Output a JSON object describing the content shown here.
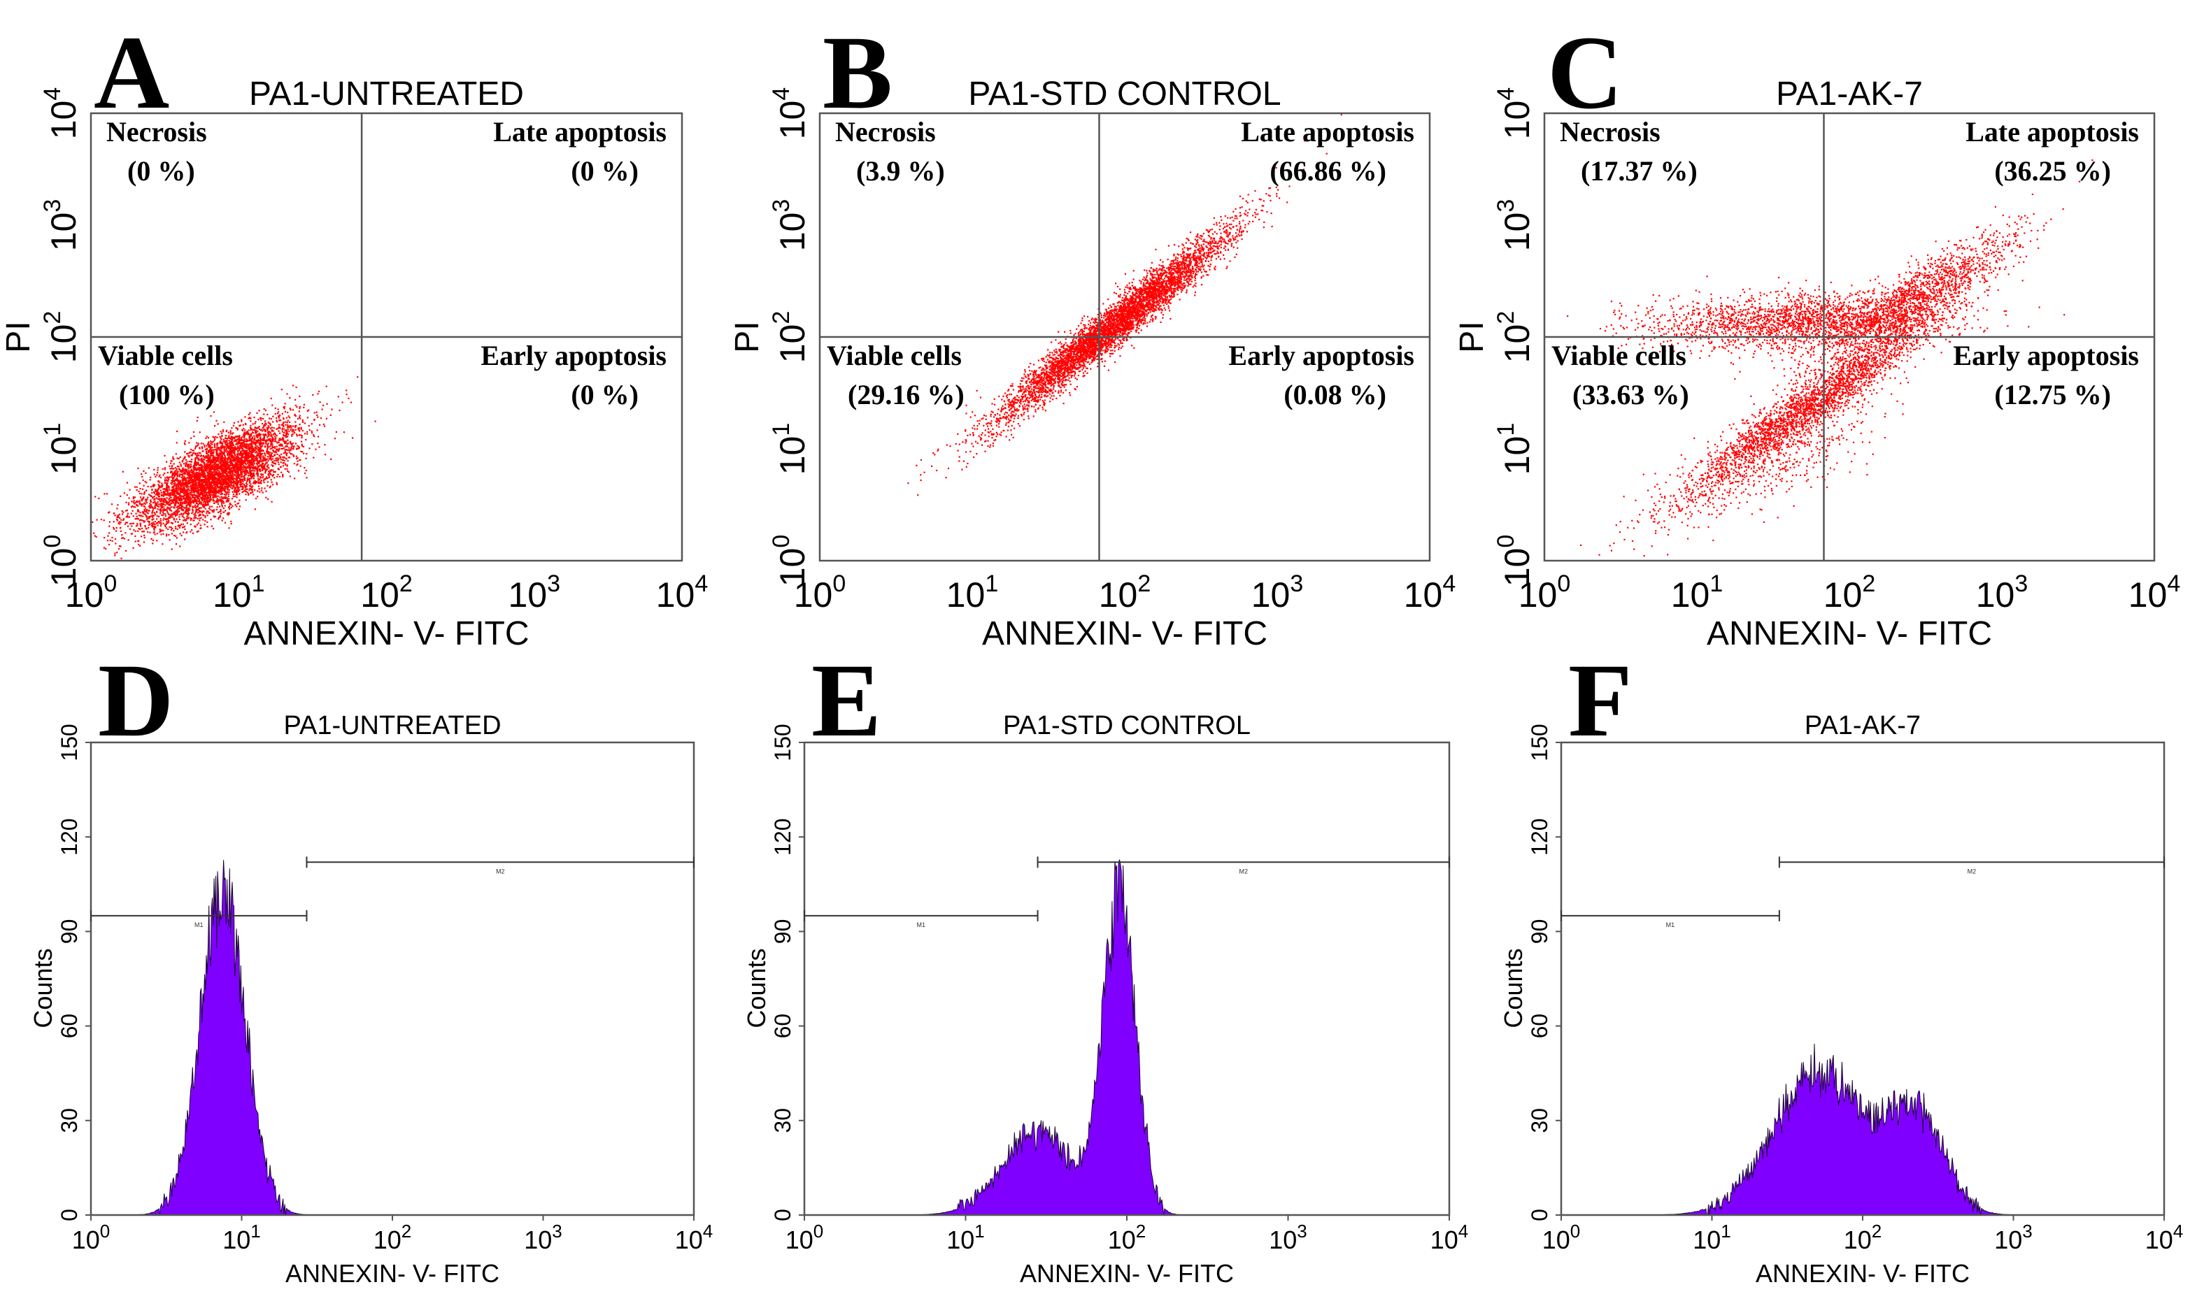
{
  "chart_data": [
    {
      "type": "scatter",
      "panel": "A",
      "title": "PA1-UNTREATED",
      "xlabel": "ANNEXIN- V- FITC",
      "ylabel": "PI",
      "xscale": "log",
      "yscale": "log",
      "xlim": [
        1,
        10000
      ],
      "ylim": [
        1,
        10000
      ],
      "xticks": [
        "10",
        "10",
        "10",
        "10",
        "10"
      ],
      "xtick_exponents": [
        "0",
        "1",
        "2",
        "3",
        "4"
      ],
      "yticks": [
        "10",
        "10",
        "10",
        "10",
        "10"
      ],
      "ytick_exponents": [
        "0",
        "1",
        "2",
        "3",
        "4"
      ],
      "quadrant_gate": {
        "x": 68,
        "y": 100
      },
      "quadrants": [
        {
          "name": "Necrosis",
          "value": "(0 %)"
        },
        {
          "name": "Late apoptosis",
          "value": "(0 %)"
        },
        {
          "name": "Viable cells",
          "value": "(100 %)"
        },
        {
          "name": "Early apoptosis",
          "value": "(0 %)"
        }
      ],
      "point_color": "#ff0000",
      "clusters": [
        {
          "center": [
            7,
            6
          ],
          "spread": [
            0.28,
            0.24
          ],
          "corr": 0.75,
          "count": 5200
        }
      ]
    },
    {
      "type": "scatter",
      "panel": "B",
      "title": "PA1-STD CONTROL",
      "xlabel": "ANNEXIN- V- FITC",
      "ylabel": "PI",
      "xscale": "log",
      "yscale": "log",
      "xlim": [
        1,
        10000
      ],
      "ylim": [
        1,
        10000
      ],
      "xticks": [
        "10",
        "10",
        "10",
        "10",
        "10"
      ],
      "xtick_exponents": [
        "0",
        "1",
        "2",
        "3",
        "4"
      ],
      "yticks": [
        "10",
        "10",
        "10",
        "10",
        "10"
      ],
      "ytick_exponents": [
        "0",
        "1",
        "2",
        "3",
        "4"
      ],
      "quadrant_gate": {
        "x": 68,
        "y": 100
      },
      "quadrants": [
        {
          "name": "Necrosis",
          "value": "(3.9 %)"
        },
        {
          "name": "Late apoptosis",
          "value": "(66.86 %)"
        },
        {
          "name": "Viable cells",
          "value": "(29.16 %)"
        },
        {
          "name": "Early apoptosis",
          "value": "(0.08 %)"
        }
      ],
      "point_color": "#ff0000",
      "clusters": [
        {
          "center": [
            85,
            130
          ],
          "spread": [
            0.38,
            0.42
          ],
          "corr": 0.97,
          "count": 5200
        }
      ]
    },
    {
      "type": "scatter",
      "panel": "C",
      "title": "PA1-AK-7",
      "xlabel": "ANNEXIN- V- FITC",
      "ylabel": "PI",
      "xscale": "log",
      "yscale": "log",
      "xlim": [
        1,
        10000
      ],
      "ylim": [
        1,
        10000
      ],
      "xticks": [
        "10",
        "10",
        "10",
        "10",
        "10"
      ],
      "xtick_exponents": [
        "0",
        "1",
        "2",
        "3",
        "4"
      ],
      "yticks": [
        "10",
        "10",
        "10",
        "10",
        "10"
      ],
      "ytick_exponents": [
        "0",
        "1",
        "2",
        "3",
        "4"
      ],
      "quadrant_gate": {
        "x": 68,
        "y": 100
      },
      "quadrants": [
        {
          "name": "Necrosis",
          "value": "(17.37 %)"
        },
        {
          "name": "Late apoptosis",
          "value": "(36.25 %)"
        },
        {
          "name": "Viable cells",
          "value": "(33.63 %)"
        },
        {
          "name": "Early apoptosis",
          "value": "(12.75 %)"
        }
      ],
      "point_color": "#ff0000",
      "clusters": [
        {
          "center": [
            55,
            25
          ],
          "spread": [
            0.42,
            0.42
          ],
          "corr": 0.96,
          "count": 2600
        },
        {
          "center": [
            45,
            140
          ],
          "spread": [
            0.5,
            0.13
          ],
          "corr": 0.2,
          "count": 2000
        },
        {
          "center": [
            250,
            220
          ],
          "spread": [
            0.35,
            0.3
          ],
          "corr": 0.9,
          "count": 1500
        },
        {
          "center": [
            30,
            8
          ],
          "spread": [
            0.4,
            0.35
          ],
          "corr": 0.8,
          "count": 500
        }
      ]
    },
    {
      "type": "histogram",
      "panel": "D",
      "title": "PA1-UNTREATED",
      "xlabel": "ANNEXIN- V- FITC",
      "ylabel": "Counts",
      "xscale": "log",
      "xlim": [
        1,
        10000
      ],
      "ylim": [
        0,
        150
      ],
      "xticks": [
        "10",
        "10",
        "10",
        "10",
        "10"
      ],
      "xtick_exponents": [
        "0",
        "1",
        "2",
        "3",
        "4"
      ],
      "yticks": [
        "0",
        "30",
        "60",
        "90",
        "120",
        "150"
      ],
      "fill_color": "#7f00ff",
      "peaks": [
        {
          "center": 7.5,
          "height": 102,
          "width": 0.15
        }
      ],
      "markers": [
        {
          "name": "M1",
          "x_start": 1,
          "x_end": 27,
          "y": 95
        },
        {
          "name": "M2",
          "x_start": 27,
          "x_end": 10000,
          "y": 112
        }
      ]
    },
    {
      "type": "histogram",
      "panel": "E",
      "title": "PA1-STD CONTROL",
      "xlabel": "ANNEXIN- V- FITC",
      "ylabel": "Counts",
      "xscale": "log",
      "xlim": [
        1,
        10000
      ],
      "ylim": [
        0,
        150
      ],
      "xticks": [
        "10",
        "10",
        "10",
        "10",
        "10"
      ],
      "xtick_exponents": [
        "0",
        "1",
        "2",
        "3",
        "4"
      ],
      "yticks": [
        "0",
        "30",
        "60",
        "90",
        "120",
        "150"
      ],
      "fill_color": "#7f00ff",
      "peaks": [
        {
          "center": 90,
          "height": 100,
          "width": 0.1
        },
        {
          "center": 28,
          "height": 26,
          "width": 0.22
        }
      ],
      "markers": [
        {
          "name": "M1",
          "x_start": 1,
          "x_end": 28,
          "y": 95
        },
        {
          "name": "M2",
          "x_start": 28,
          "x_end": 10000,
          "y": 112
        }
      ]
    },
    {
      "type": "histogram",
      "panel": "F",
      "title": "PA1-AK-7",
      "xlabel": "ANNEXIN- V- FITC",
      "ylabel": "Counts",
      "xscale": "log",
      "xlim": [
        1,
        10000
      ],
      "ylim": [
        0,
        150
      ],
      "xticks": [
        "10",
        "10",
        "10",
        "10",
        "10"
      ],
      "xtick_exponents": [
        "0",
        "1",
        "2",
        "3",
        "4"
      ],
      "yticks": [
        "0",
        "30",
        "60",
        "90",
        "120",
        "150"
      ],
      "fill_color": "#7f00ff",
      "peaks": [
        {
          "center": 52,
          "height": 46,
          "width": 0.3
        },
        {
          "center": 230,
          "height": 30,
          "width": 0.18
        }
      ],
      "markers": [
        {
          "name": "M1",
          "x_start": 1,
          "x_end": 28,
          "y": 95
        },
        {
          "name": "M2",
          "x_start": 28,
          "x_end": 10000,
          "y": 112
        }
      ]
    }
  ]
}
